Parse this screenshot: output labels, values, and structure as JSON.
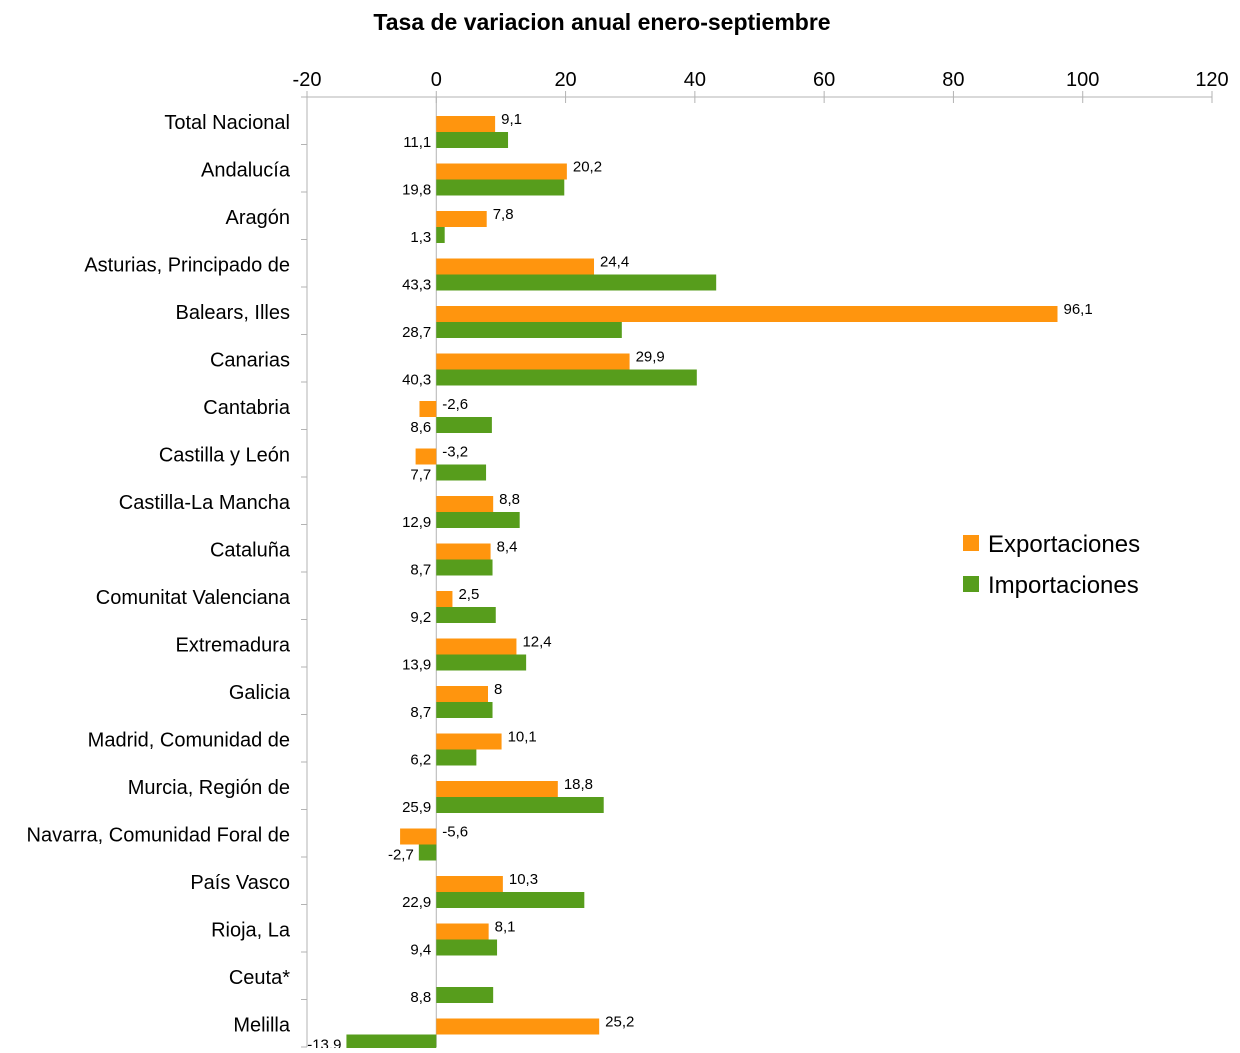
{
  "chart_data": {
    "type": "bar",
    "orientation": "horizontal",
    "title": "Tasa de variacion anual enero-septiembre",
    "xlim": [
      -20,
      120
    ],
    "x_ticks": [
      "-20",
      "0",
      "20",
      "40",
      "60",
      "80",
      "100",
      "120"
    ],
    "grid": false,
    "legend_position": "right",
    "categories": [
      "Total Nacional",
      "Andalucía",
      "Aragón",
      "Asturias, Principado de",
      "Balears, Illes",
      "Canarias",
      "Cantabria",
      "Castilla y León",
      "Castilla-La Mancha",
      "Cataluña",
      "Comunitat Valenciana",
      "Extremadura",
      "Galicia",
      "Madrid, Comunidad de",
      "Murcia, Región de",
      "Navarra, Comunidad Foral de",
      "País Vasco",
      "Rioja, La",
      "Ceuta*",
      "Melilla"
    ],
    "series": [
      {
        "name": "Exportaciones",
        "color": "#ff950e",
        "values": [
          9.1,
          20.2,
          7.8,
          24.4,
          96.1,
          29.9,
          -2.6,
          -3.2,
          8.8,
          8.4,
          2.5,
          12.4,
          8,
          10.1,
          18.8,
          -5.6,
          10.3,
          8.1,
          null,
          25.2
        ],
        "labels": [
          "9,1",
          "20,2",
          "7,8",
          "24,4",
          "96,1",
          "29,9",
          "-2,6",
          "-3,2",
          "8,8",
          "8,4",
          "2,5",
          "12,4",
          "8",
          "10,1",
          "18,8",
          "-5,6",
          "10,3",
          "8,1",
          "",
          "25,2"
        ]
      },
      {
        "name": "Importaciones",
        "color": "#579d1c",
        "values": [
          11.1,
          19.8,
          1.3,
          43.3,
          28.7,
          40.3,
          8.6,
          7.7,
          12.9,
          8.7,
          9.2,
          13.9,
          8.7,
          6.2,
          25.9,
          -2.7,
          22.9,
          9.4,
          8.8,
          -13.9
        ],
        "labels": [
          "11,1",
          "19,8",
          "1,3",
          "43,3",
          "28,7",
          "40,3",
          "8,6",
          "7,7",
          "12,9",
          "8,7",
          "9,2",
          "13,9",
          "8,7",
          "6,2",
          "25,9",
          "-2,7",
          "22,9",
          "9,4",
          "8,8",
          "-13,9"
        ]
      }
    ]
  }
}
